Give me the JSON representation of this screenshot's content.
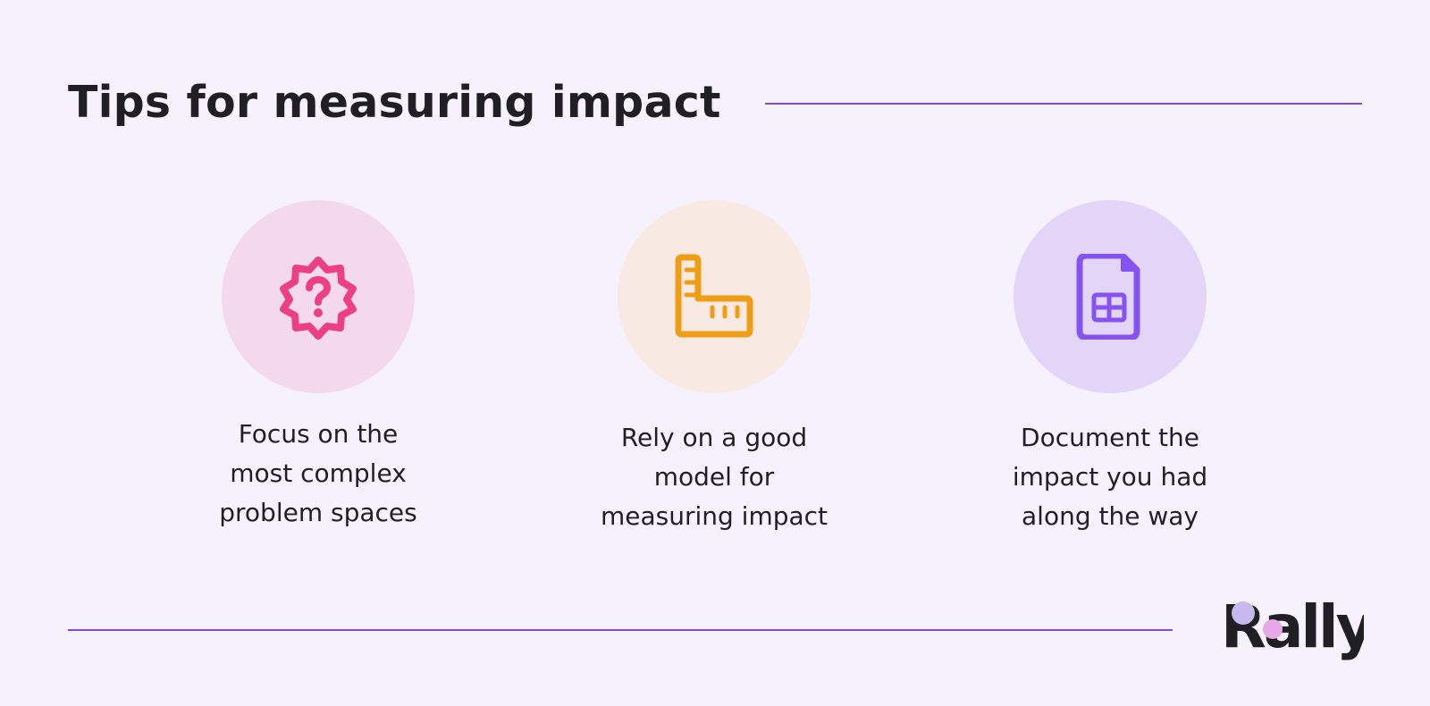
{
  "header": {
    "title": "Tips for measuring impact"
  },
  "tips": [
    {
      "text": "Focus on the\nmost complex\nproblem spaces",
      "icon": "question-badge-icon",
      "circle_color": "#f4d9ee",
      "icon_color": "#ec3f86"
    },
    {
      "text": "Rely on a good\nmodel for\nmeasuring impact",
      "icon": "ruler-icon",
      "circle_color": "#f8e9e3",
      "icon_color": "#f09d16"
    },
    {
      "text": "Document the\nimpact you had\nalong the way",
      "icon": "spreadsheet-file-icon",
      "circle_color": "#e2d5f8",
      "icon_color": "#8553f0"
    }
  ],
  "brand": {
    "logo_text": "Rally",
    "accent_line_color": "#7c4ddd",
    "background_color": "#f5f2fd"
  }
}
